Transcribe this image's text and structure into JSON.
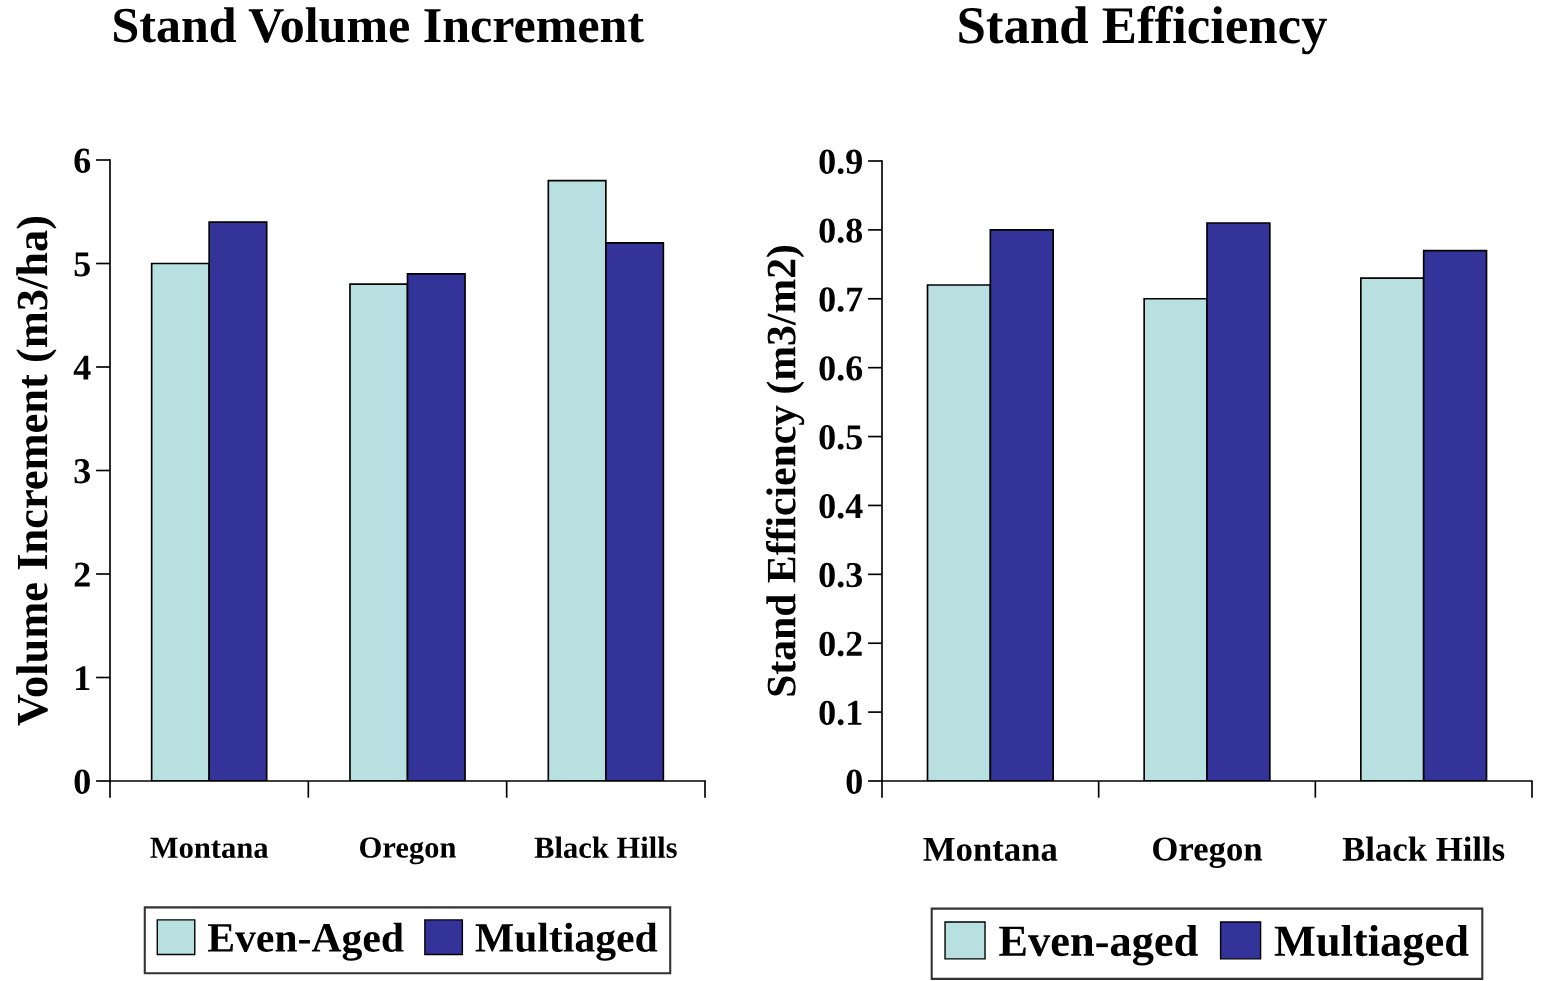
{
  "chart_data": [
    {
      "type": "bar",
      "title": "Stand Volume Increment",
      "ylabel": "Volume Increment (m3/ha)",
      "categories": [
        "Montana",
        "Oregon",
        "Black Hills"
      ],
      "series": [
        {
          "name": "Even-Aged",
          "color": "#b8e0e0",
          "values": [
            5.0,
            4.8,
            5.8
          ]
        },
        {
          "name": "Multiaged",
          "color": "#333399",
          "values": [
            5.4,
            4.9,
            5.2
          ]
        }
      ],
      "ylim": [
        0,
        6
      ],
      "yticks": [
        0,
        1,
        2,
        3,
        4,
        5,
        6
      ],
      "grid": false,
      "legend": "bottom"
    },
    {
      "type": "bar",
      "title": "Stand Efficiency",
      "ylabel": "Stand Efficiency (m3/m2)",
      "categories": [
        "Montana",
        "Oregon",
        "Black Hills"
      ],
      "series": [
        {
          "name": "Even-aged",
          "color": "#b8e0e0",
          "values": [
            0.72,
            0.7,
            0.73
          ]
        },
        {
          "name": "Multiaged",
          "color": "#333399",
          "values": [
            0.8,
            0.81,
            0.77
          ]
        }
      ],
      "ylim": [
        0,
        0.9
      ],
      "yticks": [
        0,
        0.1,
        0.2,
        0.3,
        0.4,
        0.5,
        0.6,
        0.7,
        0.8,
        0.9
      ],
      "grid": false,
      "legend": "bottom"
    }
  ]
}
